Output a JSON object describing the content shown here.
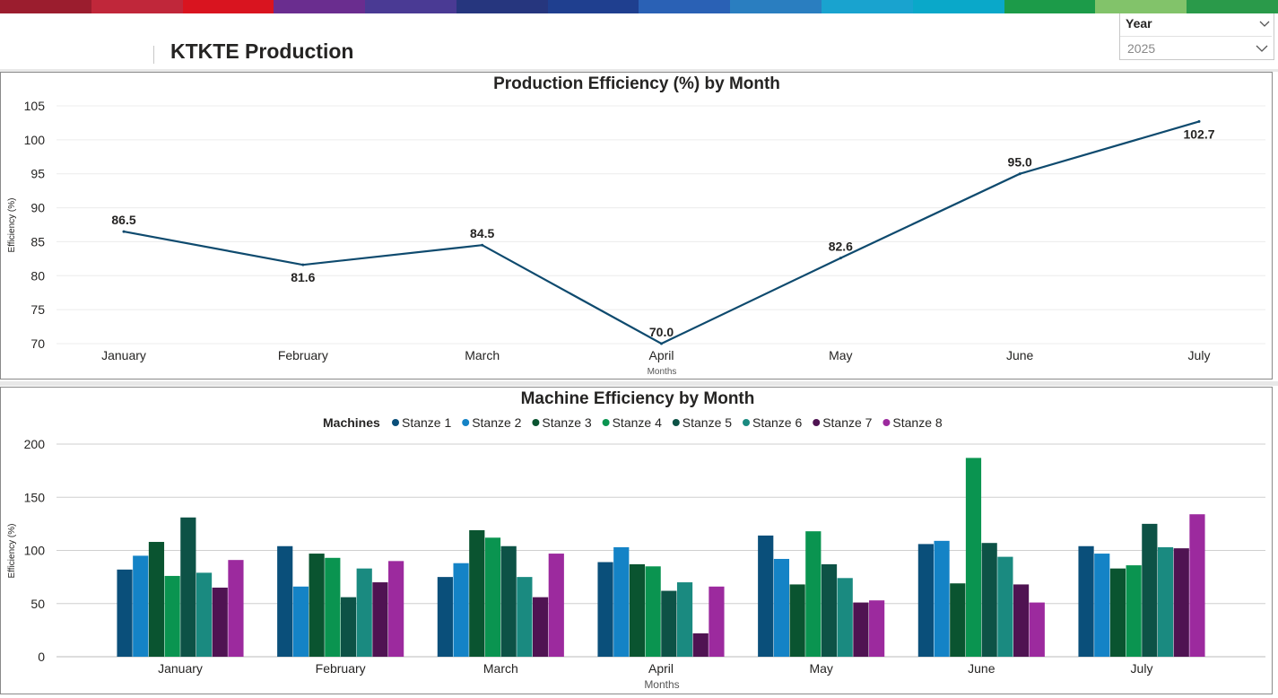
{
  "header": {
    "title": "KTKTE Production",
    "colors": [
      "#9b1d2e",
      "#c0273a",
      "#d9141f",
      "#6a2d8f",
      "#4a3a94",
      "#26367e",
      "#1f3f8f",
      "#2a61b5",
      "#2a7ec0",
      "#19a3cf",
      "#0aa8c9",
      "#1c9b49",
      "#82c36a",
      "#2a9a4a"
    ]
  },
  "slicer": {
    "label": "Year",
    "value": "2025",
    "icon": "chevron-down-icon"
  },
  "chart_data": [
    {
      "type": "line",
      "title": "Production Efficiency (%) by Month",
      "xlabel": "Months",
      "ylabel": "Efficiency (%)",
      "categories": [
        "January",
        "February",
        "March",
        "April",
        "May",
        "June",
        "July"
      ],
      "values": [
        86.5,
        81.6,
        84.5,
        70.0,
        82.6,
        95.0,
        102.7
      ],
      "data_labels": [
        "86.5",
        "81.6",
        "84.5",
        "70.0",
        "82.6",
        "95.0",
        "102.7"
      ],
      "yticks": [
        70,
        75,
        80,
        85,
        90,
        95,
        100,
        105
      ],
      "ylim": [
        70,
        105
      ],
      "grid": true,
      "color": "#0e4a6e"
    },
    {
      "type": "bar",
      "title": "Machine Efficiency by Month",
      "xlabel": "Months",
      "ylabel": "Efficiency (%)",
      "legend_title": "Machines",
      "legend_position": "top-center",
      "categories": [
        "January",
        "February",
        "March",
        "April",
        "May",
        "June",
        "July"
      ],
      "yticks": [
        0,
        50,
        100,
        150,
        200
      ],
      "ylim": [
        0,
        200
      ],
      "grid": true,
      "series": [
        {
          "name": "Stanze 1",
          "color": "#0a4f7a",
          "values": [
            82,
            104,
            75,
            89,
            114,
            106,
            104
          ]
        },
        {
          "name": "Stanze 2",
          "color": "#1483c6",
          "values": [
            95,
            66,
            88,
            103,
            92,
            109,
            97
          ]
        },
        {
          "name": "Stanze 3",
          "color": "#0a5430",
          "values": [
            108,
            97,
            119,
            87,
            68,
            69,
            83
          ]
        },
        {
          "name": "Stanze 4",
          "color": "#0a9450",
          "values": [
            76,
            93,
            112,
            85,
            118,
            187,
            86
          ]
        },
        {
          "name": "Stanze 5",
          "color": "#0d5246",
          "values": [
            131,
            56,
            104,
            62,
            87,
            107,
            125
          ]
        },
        {
          "name": "Stanze 6",
          "color": "#1a8a80",
          "values": [
            79,
            83,
            75,
            70,
            74,
            94,
            103
          ]
        },
        {
          "name": "Stanze 7",
          "color": "#4f1352",
          "values": [
            65,
            70,
            56,
            22,
            51,
            68,
            102
          ]
        },
        {
          "name": "Stanze 8",
          "color": "#9c2a9e",
          "values": [
            91,
            90,
            97,
            66,
            53,
            51,
            134
          ]
        }
      ]
    }
  ]
}
